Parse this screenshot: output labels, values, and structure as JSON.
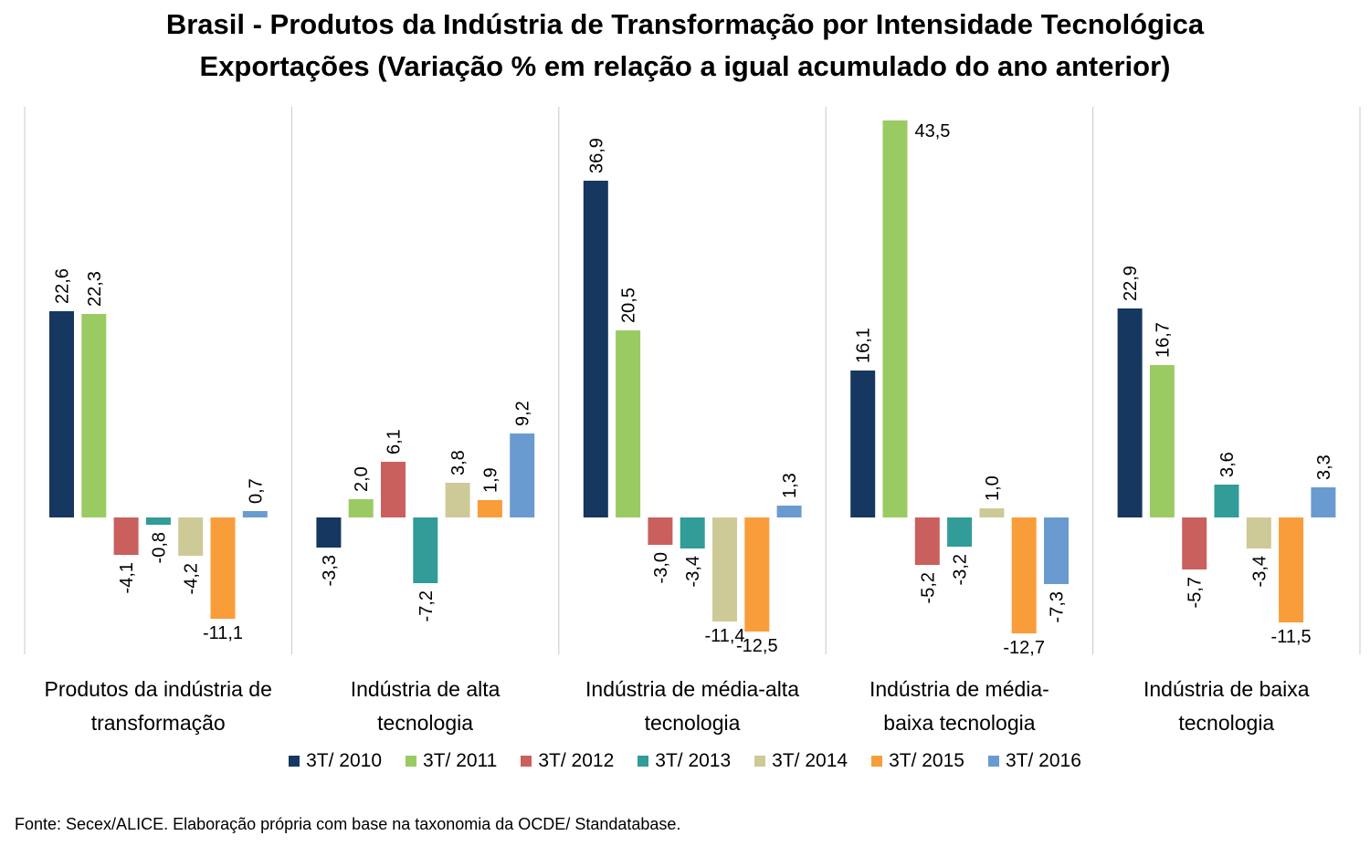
{
  "chart_data": {
    "type": "bar",
    "title": "Brasil - Produtos da Indústria de Transformação por Intensidade Tecnológica",
    "subtitle": "Exportações (Variação % em relação a igual acumulado do ano anterior)",
    "categories": [
      [
        "Produtos da indústria de",
        "transformação"
      ],
      [
        "Indústria de alta",
        "tecnologia"
      ],
      [
        "Indústria de média-alta",
        "tecnologia"
      ],
      [
        "Indústria de média-",
        "baixa tecnologia"
      ],
      [
        "Indústria de baixa",
        "tecnologia"
      ]
    ],
    "series": [
      {
        "name": "3T/ 2010",
        "color": "#16375f",
        "values": [
          22.6,
          -3.3,
          36.9,
          16.1,
          22.9
        ],
        "labels": [
          "22,6",
          "-3,3",
          "36,9",
          "16,1",
          "22,9"
        ]
      },
      {
        "name": "3T/ 2011",
        "color": "#9acb62",
        "values": [
          22.3,
          2.0,
          20.5,
          43.5,
          16.7
        ],
        "labels": [
          "22,3",
          "2,0",
          "20,5",
          "43,5",
          "16,7"
        ]
      },
      {
        "name": "3T/ 2012",
        "color": "#c9605e",
        "values": [
          -4.1,
          6.1,
          -3.0,
          -5.2,
          -5.7
        ],
        "labels": [
          "-4,1",
          "6,1",
          "-3,0",
          "-5,2",
          "-5,7"
        ]
      },
      {
        "name": "3T/ 2013",
        "color": "#319c98",
        "values": [
          -0.8,
          -7.2,
          -3.4,
          -3.2,
          3.6
        ],
        "labels": [
          "-0,8",
          "-7,2",
          "-3,4",
          "-3,2",
          "3,6"
        ]
      },
      {
        "name": "3T/ 2014",
        "color": "#cdca97",
        "values": [
          -4.2,
          3.8,
          -11.4,
          1.0,
          -3.4
        ],
        "labels": [
          "-4,2",
          "3,8",
          "-11,4",
          "1,0",
          "-3,4"
        ]
      },
      {
        "name": "3T/ 2015",
        "color": "#f99c3a",
        "values": [
          -11.1,
          1.9,
          -12.5,
          -12.7,
          -11.5
        ],
        "labels": [
          "-11,1",
          "1,9",
          "-12,5",
          "-12,7",
          "-11,5"
        ]
      },
      {
        "name": "3T/ 2016",
        "color": "#6a9bd0",
        "values": [
          0.7,
          9.2,
          1.3,
          -7.3,
          3.3
        ],
        "labels": [
          "0,7",
          "9,2",
          "1,3",
          "-7,3",
          "3,3"
        ]
      }
    ],
    "ylim": [
      -15,
      45
    ],
    "grid": false,
    "legend_position": "bottom"
  },
  "footnote": "Fonte: Secex/ALICE. Elaboração própria com base na taxonomia da OCDE/ Standatabase."
}
